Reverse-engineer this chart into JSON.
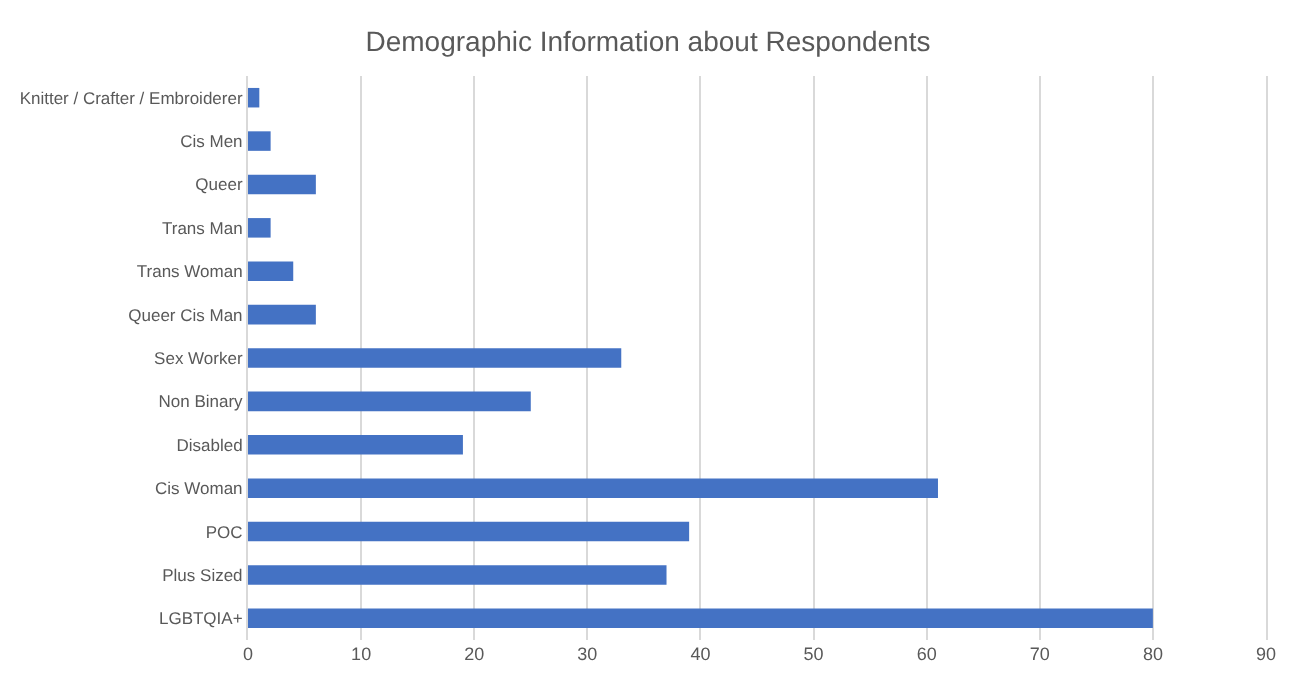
{
  "chart_data": {
    "type": "bar",
    "orientation": "horizontal",
    "title": "Demographic Information about Respondents",
    "categories": [
      "Knitter / Crafter / Embroiderer",
      "Cis Men",
      "Queer",
      "Trans Man",
      "Trans Woman",
      "Queer Cis Man",
      "Sex Worker",
      "Non Binary",
      "Disabled",
      "Cis Woman",
      "POC",
      "Plus Sized",
      "LGBTQIA+"
    ],
    "values": [
      1,
      2,
      6,
      2,
      4,
      6,
      33,
      25,
      19,
      61,
      39,
      37,
      80
    ],
    "color": "#4472c4",
    "xlim": [
      0,
      90
    ],
    "xticks": [
      0,
      10,
      20,
      30,
      40,
      50,
      60,
      70,
      80,
      90
    ],
    "grid": "x"
  }
}
